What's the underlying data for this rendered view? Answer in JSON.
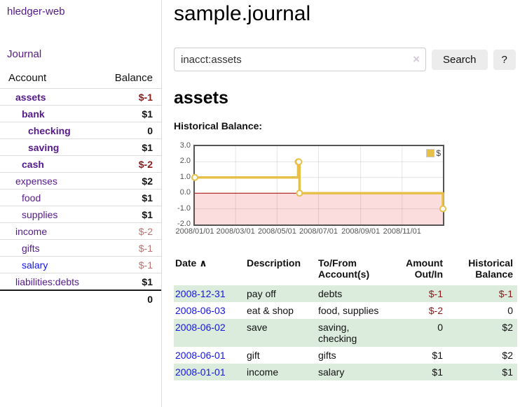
{
  "app": {
    "brand": "hledger-web"
  },
  "sidebar": {
    "journal_link": "Journal",
    "accounts": {
      "header_account": "Account",
      "header_balance": "Balance",
      "rows": [
        {
          "name": "assets",
          "balance": "$-1",
          "depth": 0,
          "row_state": "q",
          "link_state": "visited"
        },
        {
          "name": "bank",
          "balance": "$1",
          "depth": 1,
          "row_state": "q",
          "link_state": "visited"
        },
        {
          "name": "checking",
          "balance": "0",
          "depth": 2,
          "row_state": "q",
          "link_state": "visited"
        },
        {
          "name": "saving",
          "balance": "$1",
          "depth": 2,
          "row_state": "q",
          "link_state": "visited"
        },
        {
          "name": "cash",
          "balance": "$-2",
          "depth": 1,
          "row_state": "q",
          "link_state": "visited"
        },
        {
          "name": "expenses",
          "balance": "$2",
          "depth": 0,
          "row_state": "",
          "link_state": "visited"
        },
        {
          "name": "food",
          "balance": "$1",
          "depth": 1,
          "row_state": "",
          "link_state": "visited"
        },
        {
          "name": "supplies",
          "balance": "$1",
          "depth": 1,
          "row_state": "",
          "link_state": "visited"
        },
        {
          "name": "income",
          "balance": "$-2",
          "depth": 0,
          "row_state": "",
          "link_state": "visited"
        },
        {
          "name": "gifts",
          "balance": "$-1",
          "depth": 1,
          "row_state": "",
          "link_state": "visited"
        },
        {
          "name": "salary",
          "balance": "$-1",
          "depth": 1,
          "row_state": "",
          "link_state": "unvisited"
        },
        {
          "name": "liabilities:debts",
          "balance": "$1",
          "depth": 0,
          "row_state": "",
          "link_state": "visited"
        }
      ],
      "total": "0"
    }
  },
  "main": {
    "title": "sample.journal",
    "search": {
      "value": "inacct:assets",
      "button_label": "Search",
      "help_label": "?"
    },
    "account_heading": "assets",
    "section_label": "Historical Balance:"
  },
  "icons": {
    "sort_ascending": "∧",
    "clear_search": "×"
  },
  "colors": {
    "link_visited_purple": "#551a8b",
    "link_blue": "#1414e8",
    "negative_strong_red": "#8b1a1a",
    "negative_weak_red": "#bb7272",
    "chart_line_gold": "#e6c049",
    "negative_region_pink": "#fcdddd",
    "zero_line_red": "#a00000",
    "row_stripe_green": "#dcecdc"
  },
  "chart_data": {
    "type": "line",
    "line_style": "step",
    "title": "Historical Balance",
    "series": [
      {
        "name": "$",
        "color": "#e6c049",
        "points": [
          [
            "2008-01-01",
            1
          ],
          [
            "2008-06-01",
            2
          ],
          [
            "2008-06-02",
            2
          ],
          [
            "2008-06-03",
            0
          ],
          [
            "2008-12-31",
            -1
          ]
        ]
      }
    ],
    "x_ticks": [
      "2008/01/01",
      "2008/03/01",
      "2008/05/01",
      "2008/07/01",
      "2008/09/01",
      "2008/11/01"
    ],
    "y_ticks": [
      "3.0",
      "2.0",
      "1.0",
      "0.0",
      "-1.0",
      "-2.0"
    ],
    "xlim": [
      "2008-01-01",
      "2008-12-31"
    ],
    "ylim": [
      -2,
      3
    ],
    "grid": true,
    "legend": {
      "label": "$",
      "position": "top-right"
    },
    "negative_region_color": "#fcdddd",
    "zero_line_color": "#a00000"
  },
  "register": {
    "headers": {
      "date": "Date",
      "description": "Description",
      "accounts": "To/From Account(s)",
      "amount": "Amount Out/In",
      "balance": "Historical Balance"
    },
    "rows": [
      {
        "date": "2008-12-31",
        "description": "pay off",
        "accounts": "debts",
        "amount": "$-1",
        "balance": "$-1"
      },
      {
        "date": "2008-06-03",
        "description": "eat & shop",
        "accounts": "food, supplies",
        "amount": "$-2",
        "balance": "0"
      },
      {
        "date": "2008-06-02",
        "description": "save",
        "accounts": "saving, checking",
        "amount": "0",
        "balance": "$2"
      },
      {
        "date": "2008-06-01",
        "description": "gift",
        "accounts": "gifts",
        "amount": "$1",
        "balance": "$2"
      },
      {
        "date": "2008-01-01",
        "description": "income",
        "accounts": "salary",
        "amount": "$1",
        "balance": "$1"
      }
    ]
  }
}
